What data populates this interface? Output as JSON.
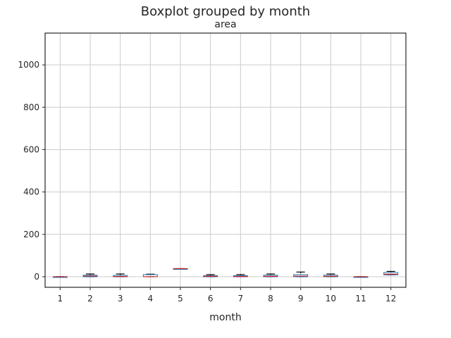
{
  "chart_data": {
    "type": "box",
    "title": "Boxplot grouped by month",
    "subtitle": "area",
    "xlabel": "month",
    "ylabel": "",
    "categories": [
      "1",
      "2",
      "3",
      "4",
      "5",
      "6",
      "7",
      "8",
      "9",
      "10",
      "11",
      "12"
    ],
    "ylim": [
      -50,
      1150
    ],
    "yticks": [
      0,
      200,
      400,
      600,
      800,
      1000
    ],
    "grid": true,
    "box_color": "#1f77b4",
    "median_color": "#d62728",
    "whisker_color": "#000000",
    "boxes": [
      {
        "month": "1",
        "whislo": 0,
        "q1": 0,
        "med": 0,
        "q3": 0,
        "whishi": 0
      },
      {
        "month": "2",
        "whislo": 0,
        "q1": 0,
        "med": 3,
        "q3": 7,
        "whishi": 13
      },
      {
        "month": "3",
        "whislo": 0,
        "q1": 0,
        "med": 1,
        "q3": 6,
        "whishi": 13
      },
      {
        "month": "4",
        "whislo": 0,
        "q1": 0,
        "med": 0,
        "q3": 10,
        "whishi": 12
      },
      {
        "month": "5",
        "whislo": 38,
        "q1": 38,
        "med": 38,
        "q3": 38,
        "whishi": 38
      },
      {
        "month": "6",
        "whislo": 0,
        "q1": 0,
        "med": 2,
        "q3": 5,
        "whishi": 10
      },
      {
        "month": "7",
        "whislo": 0,
        "q1": 0,
        "med": 1,
        "q3": 5,
        "whishi": 10
      },
      {
        "month": "8",
        "whislo": 0,
        "q1": 0,
        "med": 2,
        "q3": 7,
        "whishi": 13
      },
      {
        "month": "9",
        "whislo": 0,
        "q1": 0,
        "med": 3,
        "q3": 10,
        "whishi": 22
      },
      {
        "month": "10",
        "whislo": 0,
        "q1": 0,
        "med": 2,
        "q3": 7,
        "whishi": 13
      },
      {
        "month": "11",
        "whislo": 0,
        "q1": 0,
        "med": 0,
        "q3": 0,
        "whishi": 0
      },
      {
        "month": "12",
        "whislo": 9,
        "q1": 9,
        "med": 12,
        "q3": 20,
        "whishi": 25
      }
    ]
  }
}
